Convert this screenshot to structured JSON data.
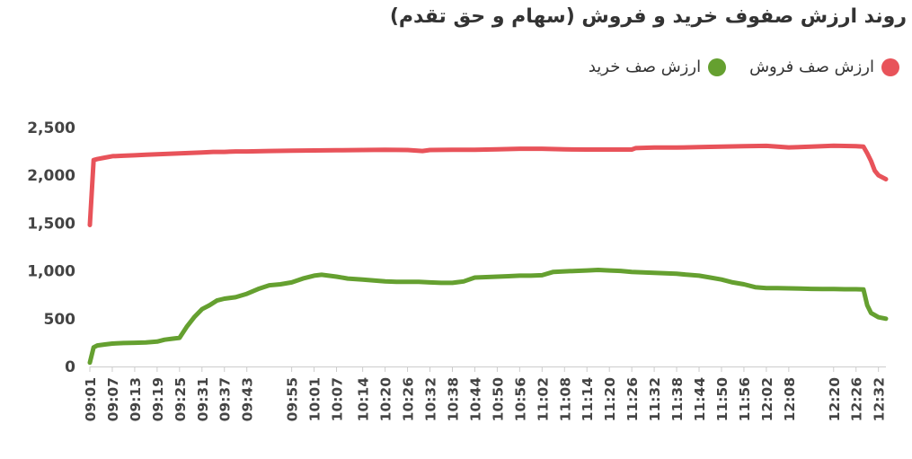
{
  "title": "روند ارزش صفوف خرید و فروش (سهام و حق تقدم)",
  "colors": {
    "sell": "#e8535a",
    "buy": "#65a030",
    "axis": "#cccccc",
    "text": "#444444"
  },
  "legend": [
    {
      "key": "sell",
      "label": "ارزش صف فروش"
    },
    {
      "key": "buy",
      "label": "ارزش صف خرید"
    }
  ],
  "chart_data": {
    "type": "line",
    "title": "روند ارزش صفوف خرید و فروش (سهام و حق تقدم)",
    "ylim": [
      0,
      2500
    ],
    "yticks": [
      0,
      500,
      1000,
      1500,
      2000,
      2500
    ],
    "ytick_labels": [
      "0",
      "500",
      "1,000",
      "1,500",
      "2,000",
      "2,500"
    ],
    "grid": false,
    "legend_position": "top-right",
    "x_tick_labels": [
      "09:01",
      "09:07",
      "09:13",
      "09:19",
      "09:25",
      "09:31",
      "09:37",
      "09:43",
      "09:55",
      "10:01",
      "10:07",
      "10:14",
      "10:20",
      "10:26",
      "10:32",
      "10:38",
      "10:44",
      "10:50",
      "10:56",
      "11:02",
      "11:08",
      "11:14",
      "11:20",
      "11:26",
      "11:32",
      "11:38",
      "11:44",
      "11:50",
      "11:56",
      "12:02",
      "12:08",
      "12:20",
      "12:26",
      "12:32"
    ],
    "series": [
      {
        "name": "ارزش صف فروش",
        "color": "#e8535a",
        "points": [
          [
            "09:01",
            1480
          ],
          [
            "09:02",
            2160
          ],
          [
            "09:03",
            2170
          ],
          [
            "09:05",
            2185
          ],
          [
            "09:07",
            2200
          ],
          [
            "09:10",
            2205
          ],
          [
            "09:13",
            2210
          ],
          [
            "09:16",
            2215
          ],
          [
            "09:19",
            2220
          ],
          [
            "09:22",
            2225
          ],
          [
            "09:25",
            2230
          ],
          [
            "09:28",
            2235
          ],
          [
            "09:31",
            2240
          ],
          [
            "09:34",
            2245
          ],
          [
            "09:37",
            2245
          ],
          [
            "09:40",
            2250
          ],
          [
            "09:43",
            2250
          ],
          [
            "09:49",
            2255
          ],
          [
            "09:55",
            2258
          ],
          [
            "10:01",
            2260
          ],
          [
            "10:07",
            2262
          ],
          [
            "10:14",
            2265
          ],
          [
            "10:20",
            2268
          ],
          [
            "10:26",
            2265
          ],
          [
            "10:30",
            2255
          ],
          [
            "10:32",
            2265
          ],
          [
            "10:38",
            2268
          ],
          [
            "10:44",
            2268
          ],
          [
            "10:50",
            2272
          ],
          [
            "10:56",
            2278
          ],
          [
            "11:02",
            2278
          ],
          [
            "11:08",
            2272
          ],
          [
            "11:14",
            2270
          ],
          [
            "11:20",
            2270
          ],
          [
            "11:26",
            2270
          ],
          [
            "11:27",
            2285
          ],
          [
            "11:32",
            2290
          ],
          [
            "11:38",
            2290
          ],
          [
            "11:44",
            2295
          ],
          [
            "11:50",
            2300
          ],
          [
            "11:56",
            2305
          ],
          [
            "12:02",
            2308
          ],
          [
            "12:05",
            2300
          ],
          [
            "12:08",
            2292
          ],
          [
            "12:14",
            2300
          ],
          [
            "12:20",
            2310
          ],
          [
            "12:26",
            2305
          ],
          [
            "12:28",
            2300
          ],
          [
            "12:29",
            2230
          ],
          [
            "12:30",
            2150
          ],
          [
            "12:31",
            2050
          ],
          [
            "12:32",
            2000
          ],
          [
            "12:34",
            1960
          ]
        ]
      },
      {
        "name": "ارزش صف خرید",
        "color": "#65a030",
        "points": [
          [
            "09:01",
            40
          ],
          [
            "09:02",
            200
          ],
          [
            "09:03",
            220
          ],
          [
            "09:05",
            230
          ],
          [
            "09:07",
            240
          ],
          [
            "09:10",
            245
          ],
          [
            "09:13",
            248
          ],
          [
            "09:16",
            252
          ],
          [
            "09:19",
            260
          ],
          [
            "09:21",
            280
          ],
          [
            "09:23",
            290
          ],
          [
            "09:25",
            300
          ],
          [
            "09:27",
            420
          ],
          [
            "09:29",
            520
          ],
          [
            "09:31",
            600
          ],
          [
            "09:33",
            640
          ],
          [
            "09:35",
            690
          ],
          [
            "09:37",
            710
          ],
          [
            "09:40",
            725
          ],
          [
            "09:43",
            760
          ],
          [
            "09:46",
            810
          ],
          [
            "09:49",
            850
          ],
          [
            "09:52",
            860
          ],
          [
            "09:55",
            880
          ],
          [
            "09:58",
            920
          ],
          [
            "10:01",
            950
          ],
          [
            "10:03",
            960
          ],
          [
            "10:07",
            940
          ],
          [
            "10:10",
            920
          ],
          [
            "10:14",
            910
          ],
          [
            "10:17",
            900
          ],
          [
            "10:20",
            890
          ],
          [
            "10:23",
            885
          ],
          [
            "10:26",
            885
          ],
          [
            "10:29",
            885
          ],
          [
            "10:32",
            880
          ],
          [
            "10:35",
            875
          ],
          [
            "10:38",
            875
          ],
          [
            "10:41",
            890
          ],
          [
            "10:44",
            930
          ],
          [
            "10:47",
            935
          ],
          [
            "10:50",
            940
          ],
          [
            "10:53",
            945
          ],
          [
            "10:56",
            950
          ],
          [
            "10:59",
            950
          ],
          [
            "11:02",
            955
          ],
          [
            "11:05",
            990
          ],
          [
            "11:08",
            995
          ],
          [
            "11:11",
            1000
          ],
          [
            "11:14",
            1005
          ],
          [
            "11:17",
            1010
          ],
          [
            "11:20",
            1005
          ],
          [
            "11:23",
            1000
          ],
          [
            "11:26",
            990
          ],
          [
            "11:29",
            985
          ],
          [
            "11:32",
            980
          ],
          [
            "11:35",
            975
          ],
          [
            "11:38",
            970
          ],
          [
            "11:41",
            960
          ],
          [
            "11:44",
            950
          ],
          [
            "11:47",
            930
          ],
          [
            "11:50",
            910
          ],
          [
            "11:53",
            880
          ],
          [
            "11:56",
            860
          ],
          [
            "11:59",
            830
          ],
          [
            "12:02",
            820
          ],
          [
            "12:05",
            820
          ],
          [
            "12:08",
            818
          ],
          [
            "12:11",
            815
          ],
          [
            "12:14",
            812
          ],
          [
            "12:17",
            810
          ],
          [
            "12:20",
            810
          ],
          [
            "12:23",
            808
          ],
          [
            "12:26",
            808
          ],
          [
            "12:28",
            805
          ],
          [
            "12:29",
            640
          ],
          [
            "12:30",
            560
          ],
          [
            "12:32",
            515
          ],
          [
            "12:34",
            500
          ]
        ]
      }
    ]
  }
}
